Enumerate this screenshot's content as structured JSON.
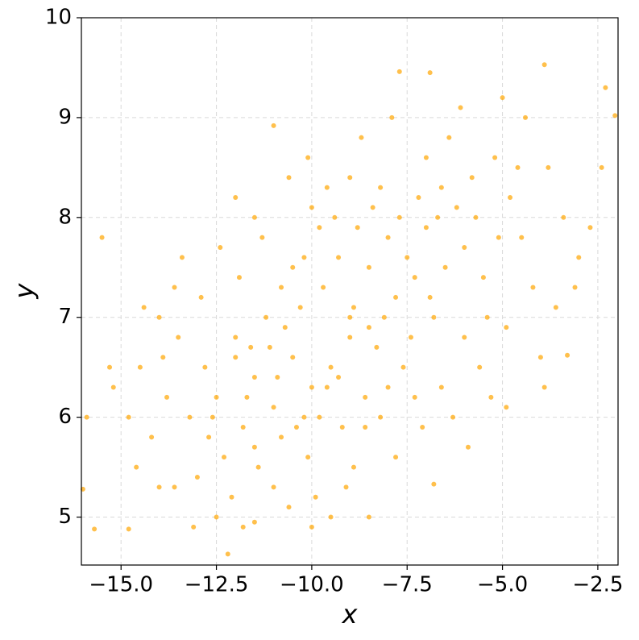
{
  "chart_data": {
    "type": "scatter",
    "x_label": "x",
    "y_label": "y",
    "color": "#ffa500",
    "grid": true,
    "xlim": [
      -16.04,
      -1.97
    ],
    "ylim": [
      4.52,
      10
    ],
    "xticks": [
      {
        "value": -15,
        "label": "−15.0"
      },
      {
        "value": -12.5,
        "label": "−12.5"
      },
      {
        "value": -10,
        "label": "−10.0"
      },
      {
        "value": -7.5,
        "label": "−7.5"
      },
      {
        "value": -5,
        "label": "−5.0"
      },
      {
        "value": -2.5,
        "label": "−2.5"
      }
    ],
    "yticks": [
      5,
      6,
      7,
      8,
      9,
      10
    ],
    "x": [
      -12.5,
      -12,
      -11.5,
      -11,
      -10.5,
      -10,
      -11.8,
      -12.8,
      -11.2,
      -10.8,
      -9.8,
      -10.3,
      -11.6,
      -12.3,
      -13.2,
      -13.5,
      -12.9,
      -11.4,
      -10.1,
      -9.5,
      -9.2,
      -10.7,
      -11.9,
      -13.8,
      -14.2,
      -14.5,
      -13.0,
      -12.1,
      -11.0,
      -9.9,
      -8.9,
      -8.6,
      -9.0,
      -10.5,
      -11.3,
      -12.4,
      -13.4,
      -14.0,
      -14.8,
      -15.2,
      -12.6,
      -11.7,
      -10.9,
      -10.2,
      -9.6,
      -12.0,
      -11.1,
      -10.4,
      -11.5,
      -12.7,
      -13.6,
      -12.5,
      -11.8,
      -10.6,
      -9.5,
      -14.0,
      -14.6,
      -13.1,
      -12.2,
      -15.7,
      -16.0,
      -14.8,
      -8,
      -7.5,
      -7,
      -6.5,
      -6,
      -5.5,
      -7.8,
      -8.5,
      -7.2,
      -6.2,
      -5.8,
      -6.8,
      -7.4,
      -5.4,
      -6.0,
      -8.2,
      -8.8,
      -9.3,
      -9.8,
      -7.0,
      -6.4,
      -5.2,
      -4.8,
      -4.5,
      -4.2,
      -4.9,
      -5.6,
      -6.6,
      -7.6,
      -8.3,
      -8.9,
      -9.6,
      -10.1,
      -8.7,
      -7.9,
      -6.1,
      -5.0,
      -4.4,
      -3.8,
      -3.4,
      -3.0,
      -3.6,
      -4.0,
      -5.3,
      -6.3,
      -7.1,
      -7.8,
      -6.8,
      -5.9,
      -4.9,
      -3.9,
      -3.3,
      -3.1,
      -2.7,
      -2.4,
      -2.3,
      -2.05,
      -3.9,
      -7.7,
      -6.9,
      -6.6,
      -7.3,
      -6.9,
      -8.1,
      -5.7,
      -5.1,
      -4.6,
      -6.7,
      -7.7,
      -8.4,
      -9.0,
      -9.4,
      -10.0,
      -10.6,
      -11.0,
      -11.5,
      -12.0,
      -9,
      -8.5,
      -9.7,
      -10.2,
      -8.0,
      -8.6,
      -9.3,
      -8.2,
      -7.3,
      -10.8,
      -15.5,
      -15.9,
      -15.3,
      -14.4,
      -13.6,
      -13.9,
      -8.5,
      -9.1,
      -10.0,
      -11.5
    ],
    "values": [
      6.2,
      6.8,
      6.4,
      6.1,
      6.6,
      6.3,
      5.9,
      6.5,
      7.0,
      5.8,
      6.0,
      7.1,
      6.7,
      5.6,
      6.0,
      6.8,
      7.2,
      5.5,
      5.6,
      6.5,
      5.9,
      6.9,
      7.4,
      6.2,
      5.8,
      6.5,
      5.4,
      5.2,
      5.3,
      5.2,
      5.5,
      6.2,
      6.8,
      7.5,
      7.8,
      7.7,
      7.6,
      7.0,
      6.0,
      6.3,
      6.0,
      6.2,
      6.4,
      6.0,
      6.3,
      6.6,
      6.7,
      5.9,
      5.7,
      5.8,
      5.3,
      5.0,
      4.9,
      5.1,
      5.0,
      5.3,
      5.5,
      4.9,
      4.63,
      4.88,
      5.28,
      4.88,
      7.8,
      7.6,
      7.9,
      7.5,
      7.7,
      7.4,
      7.2,
      7.5,
      8.2,
      8.1,
      8.4,
      7.0,
      6.8,
      7.0,
      6.8,
      8.3,
      7.9,
      7.6,
      7.9,
      8.6,
      8.8,
      8.6,
      8.2,
      7.8,
      7.3,
      6.9,
      6.5,
      6.3,
      6.5,
      6.7,
      7.1,
      8.3,
      8.6,
      8.8,
      9.0,
      9.1,
      9.2,
      9.0,
      8.5,
      8.0,
      7.6,
      7.1,
      6.6,
      6.2,
      6.0,
      5.9,
      5.6,
      5.33,
      5.7,
      6.1,
      6.3,
      6.62,
      7.3,
      7.9,
      8.5,
      9.3,
      9.02,
      9.53,
      9.46,
      9.45,
      8.3,
      7.4,
      7.2,
      7.0,
      8.0,
      7.8,
      8.5,
      8.0,
      8.0,
      8.1,
      8.4,
      8.0,
      8.1,
      8.4,
      8.92,
      8.0,
      8.2,
      7.0,
      6.9,
      7.3,
      7.6,
      6.3,
      5.9,
      6.4,
      6.0,
      6.2,
      7.3,
      7.8,
      6.0,
      6.5,
      7.1,
      7.3,
      6.6,
      5.0,
      5.3,
      4.9,
      4.95
    ]
  }
}
